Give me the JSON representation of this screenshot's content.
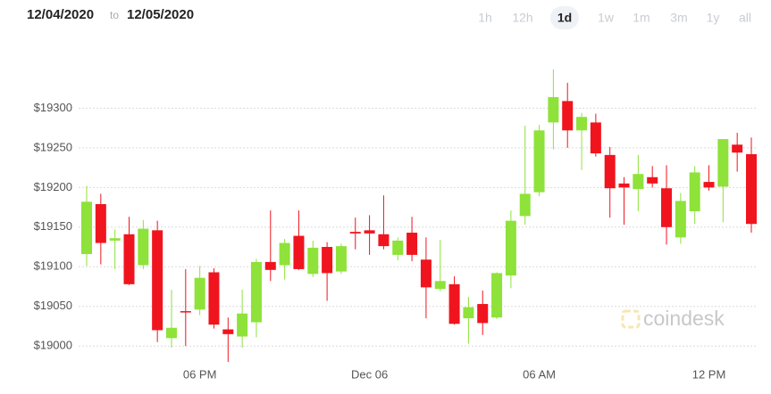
{
  "date_range": {
    "from": "12/04/2020",
    "separator": "to",
    "to": "12/05/2020"
  },
  "ranges": [
    "1h",
    "12h",
    "1d",
    "1w",
    "1m",
    "3m",
    "1y",
    "all"
  ],
  "active_range_index": 2,
  "chart_data": {
    "type": "candlestick",
    "watermark": "coindesk",
    "categories": [
      null,
      null,
      null,
      null,
      null,
      null,
      null,
      null,
      "06 PM",
      null,
      null,
      null,
      null,
      null,
      null,
      null,
      null,
      null,
      null,
      null,
      "Dec 06",
      null,
      null,
      null,
      null,
      null,
      null,
      null,
      null,
      null,
      null,
      null,
      "06 AM",
      null,
      null,
      null,
      null,
      null,
      null,
      null,
      null,
      null,
      null,
      null,
      "12 PM",
      null,
      null,
      null
    ],
    "open": [
      19116,
      19179,
      19133,
      19141,
      19102,
      19146,
      19010,
      19044,
      19046,
      19093,
      19021,
      19012,
      19030,
      19106,
      19102,
      19139,
      19091,
      19125,
      19094,
      19144,
      19146,
      19141,
      19115,
      19143,
      19109,
      19072,
      19078,
      19035,
      19053,
      19036,
      19089,
      19164,
      19194,
      19282,
      19309,
      19272,
      19282,
      19241,
      19205,
      19198,
      19213,
      19199,
      19137,
      19170,
      19207,
      19201,
      19254,
      19242
    ],
    "high": [
      19202,
      19192,
      19147,
      19163,
      19159,
      19158,
      19071,
      19097,
      19101,
      19098,
      19036,
      19071,
      19110,
      19171,
      19135,
      19171,
      19133,
      19131,
      19129,
      19162,
      19165,
      19190,
      19137,
      19163,
      19137,
      19134,
      19088,
      19062,
      19070,
      19093,
      19171,
      19278,
      19279,
      19349,
      19332,
      19294,
      19293,
      19251,
      19213,
      19241,
      19227,
      19228,
      19193,
      19227,
      19228,
      19261,
      19269,
      19263
    ],
    "low": [
      19101,
      19103,
      19097,
      19077,
      19097,
      19005,
      18998,
      19000,
      19039,
      19022,
      18980,
      18998,
      19011,
      19082,
      19084,
      19096,
      19087,
      19057,
      19091,
      19122,
      19115,
      19122,
      19108,
      19107,
      19035,
      19069,
      19027,
      19003,
      19014,
      19034,
      19073,
      19153,
      19189,
      19248,
      19250,
      19222,
      19239,
      19162,
      19153,
      19170,
      19200,
      19128,
      19129,
      19154,
      19196,
      19156,
      19220,
      19143
    ],
    "close": [
      19182,
      19130,
      19136,
      19078,
      19148,
      19020,
      19023,
      19043,
      19086,
      19027,
      19015,
      19041,
      19106,
      19096,
      19130,
      19097,
      19124,
      19092,
      19126,
      19142,
      19142,
      19126,
      19133,
      19115,
      19074,
      19082,
      19028,
      19049,
      19029,
      19092,
      19158,
      19192,
      19272,
      19314,
      19272,
      19289,
      19243,
      19199,
      19200,
      19217,
      19205,
      19150,
      19183,
      19219,
      19200,
      19261,
      19244,
      19154
    ],
    "up_color": "#8ee23a",
    "down_color": "#f0141e",
    "ylim": [
      18953,
      19369
    ],
    "yticks": [
      {
        "value": 19000,
        "label": "$19000"
      },
      {
        "value": 19050,
        "label": "$19050"
      },
      {
        "value": 19100,
        "label": "$19100"
      },
      {
        "value": 19150,
        "label": "$19150"
      },
      {
        "value": 19200,
        "label": "$19200"
      },
      {
        "value": 19250,
        "label": "$19250"
      },
      {
        "value": 19300,
        "label": "$19300"
      }
    ],
    "grid": true
  }
}
